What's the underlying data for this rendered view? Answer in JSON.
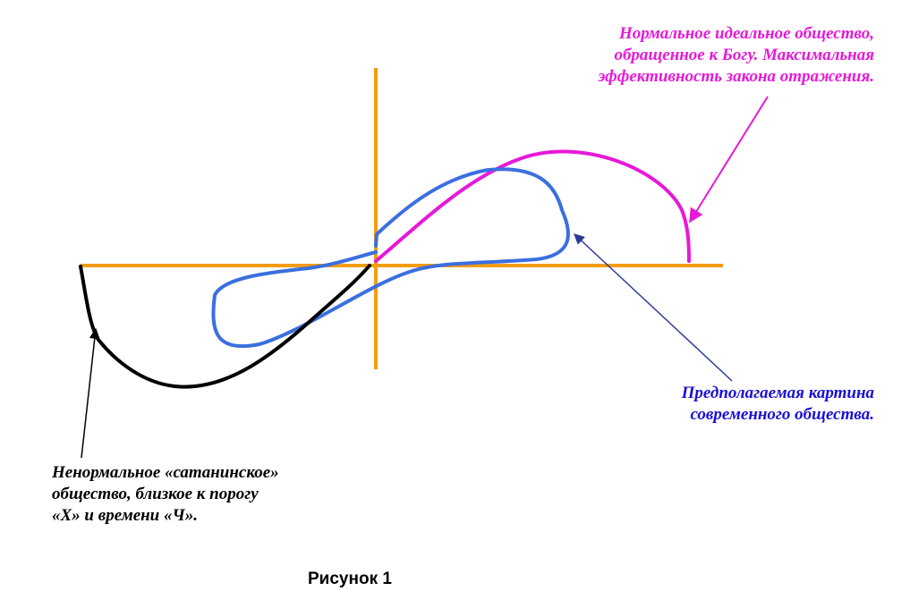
{
  "labels": {
    "ideal": {
      "lines": [
        "Нормальное идеальное общество,",
        "обращенное к Богу. Максимальная",
        "эффективность закона отражения."
      ]
    },
    "modern": {
      "lines": [
        "Предполагаемая картина",
        "современного общества."
      ]
    },
    "satanic": {
      "lines": [
        "Ненормальное «сатанинское»",
        "общество, близкое к порогу",
        "«X» и времени «Ч»."
      ]
    }
  },
  "caption": "Рисунок 1",
  "colors": {
    "axes": "#f39c12",
    "ideal": "#e619d9",
    "modern": "#3b6fe0",
    "satanic": "#000000",
    "ideal_text": "#e619d9",
    "modern_text": "#1a0fd6",
    "satanic_text": "#000000",
    "modern_pointer": "#2a3a9a"
  }
}
